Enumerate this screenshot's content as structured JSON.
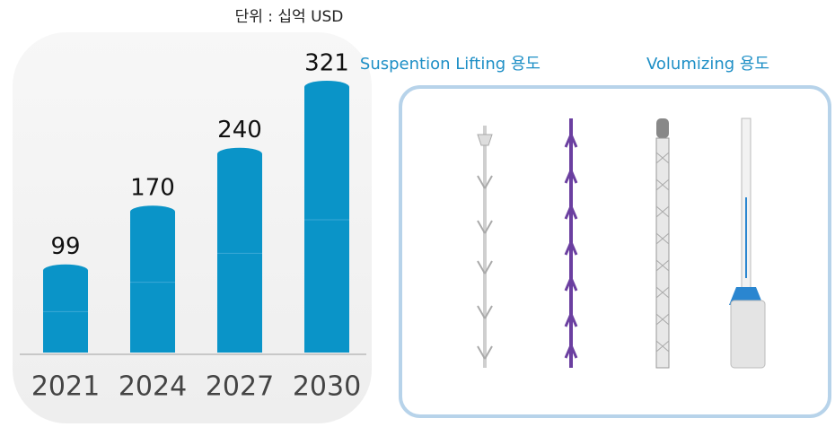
{
  "chart_data": {
    "type": "bar",
    "unit_label": "단위 : 십억 USD",
    "categories": [
      "2021",
      "2024",
      "2027",
      "2030"
    ],
    "values": [
      99,
      170,
      240,
      321
    ],
    "color": "#0a94c8",
    "panel_labels": [
      "Suspention Lifting  용도",
      "Volumizing 용도"
    ]
  }
}
